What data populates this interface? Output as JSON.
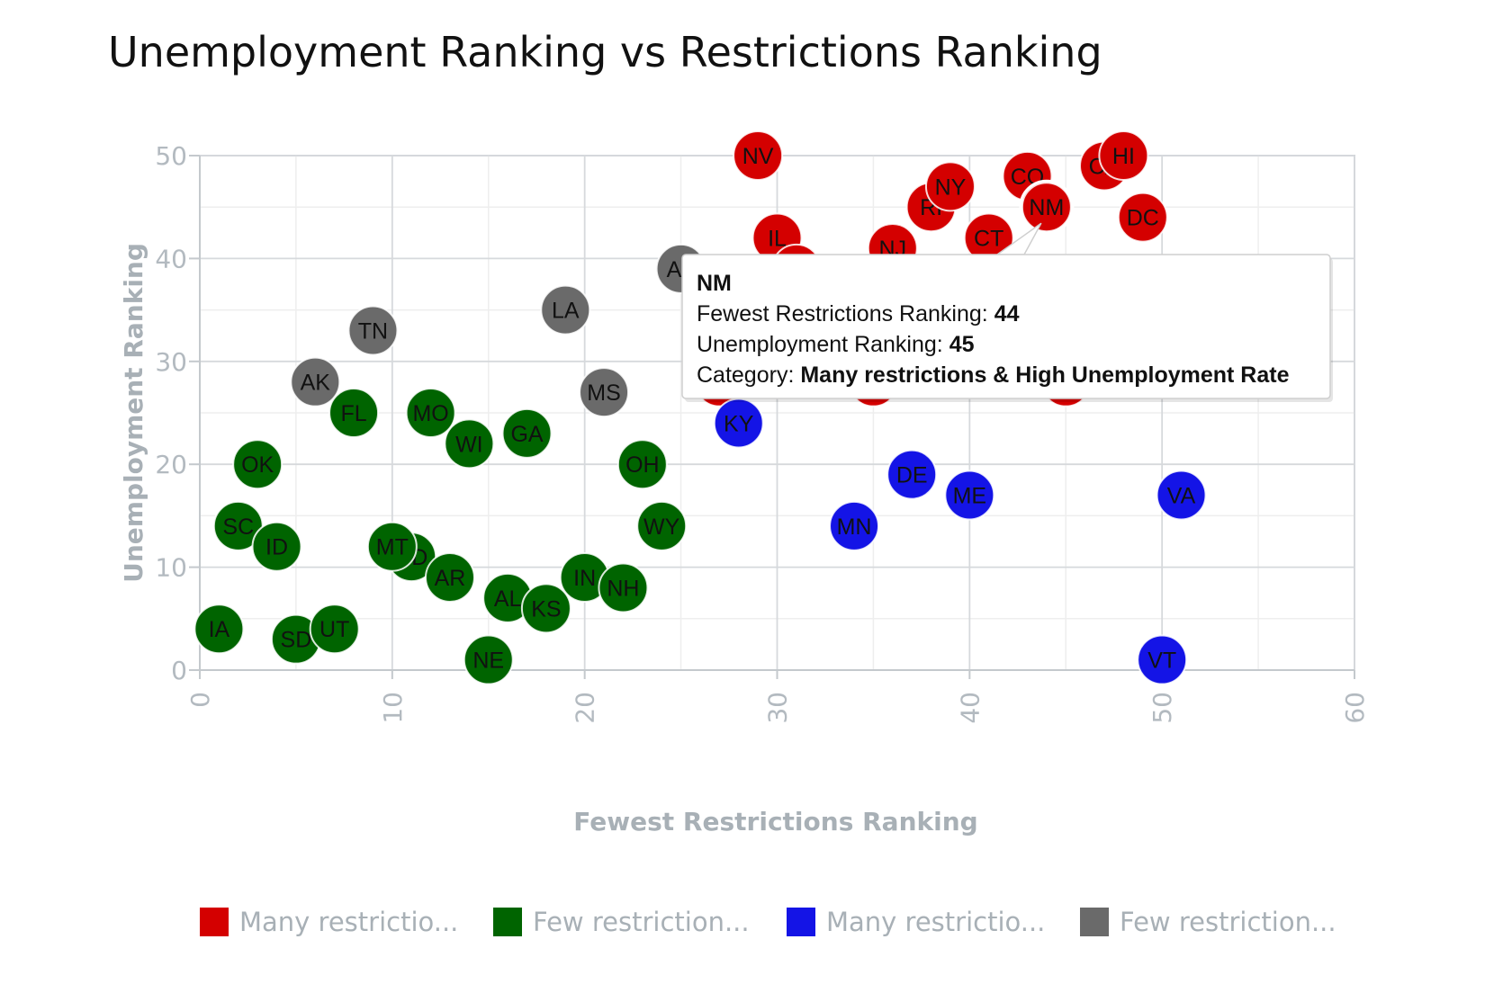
{
  "chart_data": {
    "type": "scatter",
    "title": "Unemployment Ranking vs Restrictions Ranking",
    "xlabel": "Fewest Restrictions Ranking",
    "ylabel": "Unemployment Ranking",
    "xlim": [
      0,
      60
    ],
    "ylim": [
      0,
      50
    ],
    "x_ticks": [
      0,
      10,
      20,
      30,
      40,
      50,
      60
    ],
    "y_ticks": [
      0,
      10,
      20,
      30,
      40,
      50
    ],
    "grid": true,
    "legend_position": "bottom",
    "series": [
      {
        "name": "Many restrictio...",
        "color": "#d40000",
        "points": [
          {
            "label": "NV",
            "x": 29,
            "y": 50
          },
          {
            "label": "IL",
            "x": 30,
            "y": 42
          },
          {
            "label": "",
            "x": 31,
            "y": 39
          },
          {
            "label": "",
            "x": 27,
            "y": 32
          },
          {
            "label": "",
            "x": 27,
            "y": 28
          },
          {
            "label": "NJ",
            "x": 36,
            "y": 41
          },
          {
            "label": "",
            "x": 35,
            "y": 28
          },
          {
            "label": "RI",
            "x": 38,
            "y": 45
          },
          {
            "label": "NY",
            "x": 39,
            "y": 47
          },
          {
            "label": "CT",
            "x": 41,
            "y": 42
          },
          {
            "label": "CO",
            "x": 43,
            "y": 48
          },
          {
            "label": "NM",
            "x": 44,
            "y": 45
          },
          {
            "label": "",
            "x": 45,
            "y": 28
          },
          {
            "label": "CA",
            "x": 47,
            "y": 49
          },
          {
            "label": "HI",
            "x": 48,
            "y": 50
          },
          {
            "label": "DC",
            "x": 49,
            "y": 44
          }
        ]
      },
      {
        "name": "Few restriction...",
        "color": "#006400",
        "points": [
          {
            "label": "IA",
            "x": 1,
            "y": 4
          },
          {
            "label": "SC",
            "x": 2,
            "y": 14
          },
          {
            "label": "OK",
            "x": 3,
            "y": 20
          },
          {
            "label": "ID",
            "x": 4,
            "y": 12
          },
          {
            "label": "SD",
            "x": 5,
            "y": 3
          },
          {
            "label": "UT",
            "x": 7,
            "y": 4
          },
          {
            "label": "FL",
            "x": 8,
            "y": 25
          },
          {
            "label": "ND",
            "x": 11,
            "y": 11
          },
          {
            "label": "MT",
            "x": 10,
            "y": 12
          },
          {
            "label": "MO",
            "x": 12,
            "y": 25
          },
          {
            "label": "AR",
            "x": 13,
            "y": 9
          },
          {
            "label": "WI",
            "x": 14,
            "y": 22
          },
          {
            "label": "NE",
            "x": 15,
            "y": 1
          },
          {
            "label": "AL",
            "x": 16,
            "y": 7
          },
          {
            "label": "GA",
            "x": 17,
            "y": 23
          },
          {
            "label": "KS",
            "x": 18,
            "y": 6
          },
          {
            "label": "IN",
            "x": 20,
            "y": 9
          },
          {
            "label": "NH",
            "x": 22,
            "y": 8
          },
          {
            "label": "OH",
            "x": 23,
            "y": 20
          },
          {
            "label": "WY",
            "x": 24,
            "y": 14
          }
        ]
      },
      {
        "name": "Many restrictio...",
        "color": "#1414e6",
        "points": [
          {
            "label": "KY",
            "x": 28,
            "y": 24
          },
          {
            "label": "MN",
            "x": 34,
            "y": 14
          },
          {
            "label": "DE",
            "x": 37,
            "y": 19
          },
          {
            "label": "ME",
            "x": 40,
            "y": 17
          },
          {
            "label": "VT",
            "x": 50,
            "y": 1
          },
          {
            "label": "VA",
            "x": 51,
            "y": 17
          }
        ]
      },
      {
        "name": "Few restriction...",
        "color": "#6a6a6a",
        "points": [
          {
            "label": "AK",
            "x": 6,
            "y": 28
          },
          {
            "label": "TN",
            "x": 9,
            "y": 33
          },
          {
            "label": "LA",
            "x": 19,
            "y": 35
          },
          {
            "label": "MS",
            "x": 21,
            "y": 27
          },
          {
            "label": "AZ",
            "x": 25,
            "y": 39
          }
        ]
      }
    ],
    "tooltip": {
      "title": "NM",
      "x_label": "Fewest Restrictions Ranking: ",
      "x_value": "44",
      "y_label": "Unemployment Ranking: ",
      "y_value": "45",
      "category_label": "Category: ",
      "category_value": "Many restrictions & High Unemployment Rate",
      "target": {
        "x": 44,
        "y": 45
      }
    }
  }
}
